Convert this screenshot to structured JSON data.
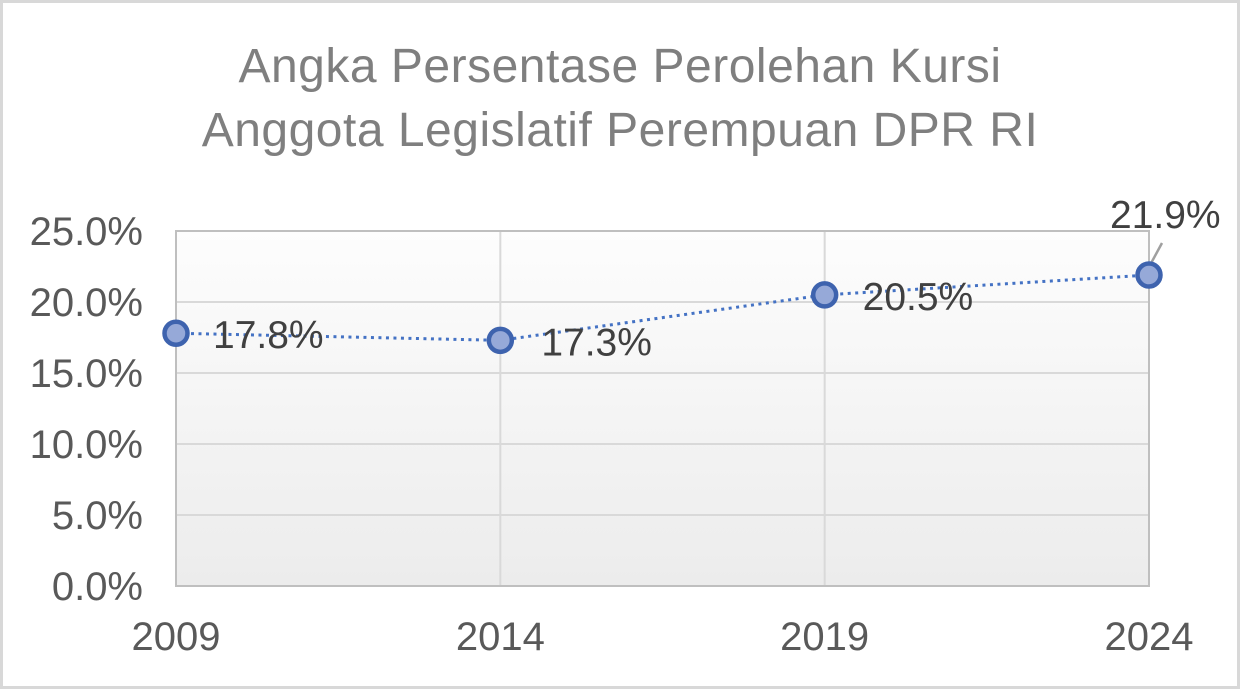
{
  "frame": {
    "border_color": "#d8d8d8",
    "background": "#ffffff"
  },
  "chart_data": {
    "type": "line",
    "title": "Angka Persentase Perolehan Kursi Anggota Legislatif Perempuan DPR RI",
    "title_lines": [
      "Angka Persentase Perolehan Kursi",
      "Anggota Legislatif Perempuan DPR RI"
    ],
    "categories": [
      "2009",
      "2014",
      "2019",
      "2024"
    ],
    "values": [
      17.8,
      17.3,
      20.5,
      21.9
    ],
    "data_labels": [
      "17.8%",
      "17.3%",
      "20.5%",
      "21.9%"
    ],
    "xlabel": "",
    "ylabel": "",
    "y_axis": {
      "min": 0,
      "max": 25,
      "step": 5,
      "tick_labels": [
        "0.0%",
        "5.0%",
        "10.0%",
        "15.0%",
        "20.0%",
        "25.0%"
      ]
    },
    "x_axis": {
      "labels": [
        "2009",
        "2014",
        "2019",
        "2024"
      ]
    },
    "grid": {
      "horizontal": true,
      "vertical": true
    },
    "legend": false,
    "line_style": "dotted",
    "marker": "circle",
    "colors": {
      "line": "#4472c4",
      "marker_fill": "#96a9d8",
      "marker_border": "#3e63ae",
      "gridline": "#d9d9d9",
      "plot_border": "#bfbfbf",
      "plot_bg_top": "#fdfdfd",
      "plot_bg_bottom": "#ececec",
      "title": "#7f7f7f",
      "axis_labels": "#595959",
      "data_labels": "#404040",
      "leader_line": "#a0a0a0"
    }
  }
}
